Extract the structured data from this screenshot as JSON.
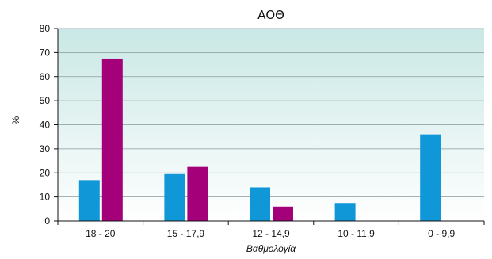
{
  "chart_data": {
    "type": "bar",
    "title": "ΑΟΘ",
    "xlabel": "Βαθμολογία",
    "ylabel": "%",
    "categories": [
      "18 - 20",
      "15 - 17,9",
      "12 - 14,9",
      "10 - 11,9",
      "0 - 9,9"
    ],
    "series": [
      {
        "values": [
          17,
          19.5,
          14,
          7.5,
          36
        ],
        "color": "#0f97d8"
      },
      {
        "values": [
          67.5,
          22.5,
          6,
          0,
          0
        ],
        "color": "#a4007a"
      }
    ],
    "ylim": [
      0,
      80
    ],
    "yticks": [
      0,
      10,
      20,
      30,
      40,
      50,
      60,
      70,
      80
    ],
    "grid": true,
    "background_gradient": [
      "#c9e8e5",
      "#ffffff"
    ]
  }
}
